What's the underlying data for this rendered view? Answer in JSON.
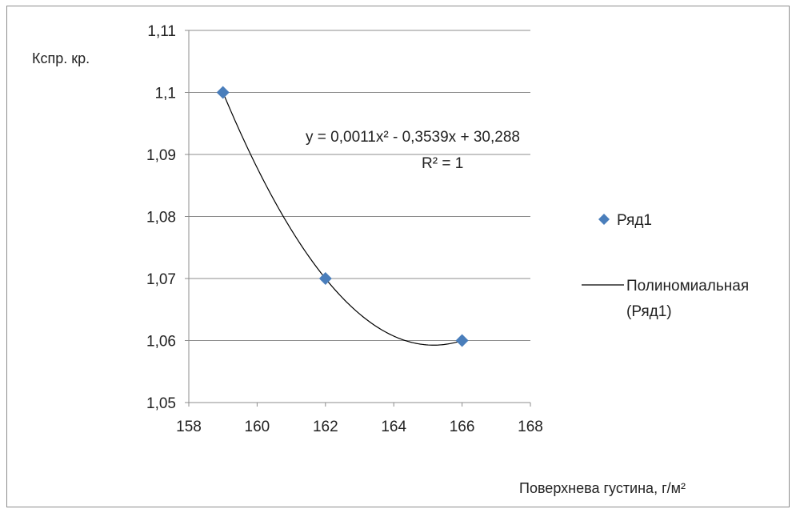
{
  "chart_data": {
    "type": "scatter",
    "ylabel": "Кспр. кр.",
    "xlabel": "Поверхнева густина, г/м²",
    "xlim": [
      158,
      168
    ],
    "ylim": [
      1.05,
      1.11
    ],
    "x_ticks": [
      158,
      160,
      162,
      164,
      166,
      168
    ],
    "y_ticks": [
      1.05,
      1.06,
      1.07,
      1.08,
      1.09,
      1.1,
      1.11
    ],
    "x_tick_labels": [
      "158",
      "160",
      "162",
      "164",
      "166",
      "168"
    ],
    "y_tick_labels": [
      "1,05",
      "1,06",
      "1,07",
      "1,08",
      "1,09",
      "1,1",
      "1,11"
    ],
    "grid": "horizontal",
    "series": [
      {
        "name": "Ряд1",
        "marker": "diamond",
        "color": "#4a7ebb",
        "x": [
          159,
          162,
          166
        ],
        "y": [
          1.1,
          1.07,
          1.06
        ]
      }
    ],
    "trendline": {
      "legend_label_line1": "Полиномиальная",
      "legend_label_line2": "(Ряд1)",
      "color": "#000000",
      "coefficients": [
        0.0011,
        -0.3539,
        30.288
      ],
      "equation": "y = 0,0011x² - 0,3539x + 30,288",
      "r_squared": "R² = 1"
    },
    "legend": {
      "position": "right"
    }
  }
}
